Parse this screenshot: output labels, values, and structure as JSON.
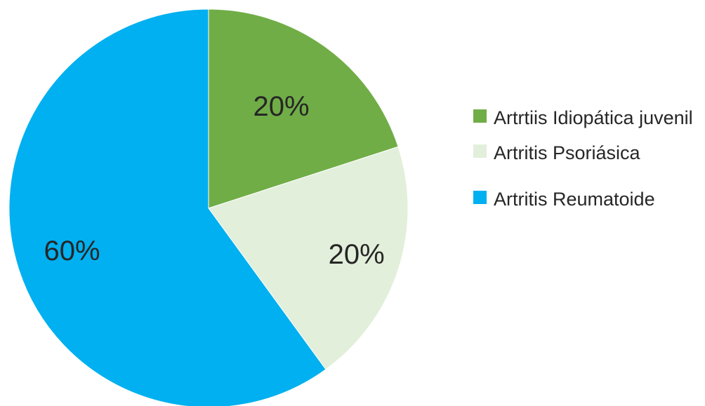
{
  "chart_data": {
    "type": "pie",
    "title": "",
    "categories": [
      "Artrtiis Idiopática juvenil",
      "Artritis Psoriásica",
      "Artritis Reumatoide"
    ],
    "values": [
      20,
      20,
      60
    ],
    "data_labels": [
      "20%",
      "20%",
      "60%"
    ],
    "colors": [
      "#70AD47",
      "#E2EFDA",
      "#00B0F0"
    ],
    "legend_position": "right",
    "start_angle_deg": 0,
    "direction": "clockwise"
  }
}
